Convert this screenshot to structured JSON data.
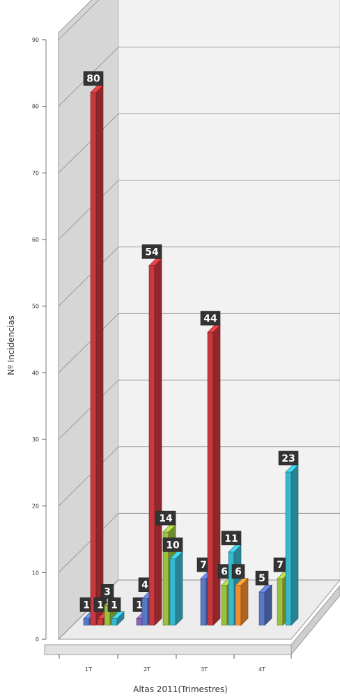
{
  "chart_data": {
    "type": "bar",
    "xlabel": "Altas 2011(Trimestres)",
    "ylabel": "Nº Incidencias",
    "ylim": [
      0,
      90
    ],
    "yticks": [
      "0",
      "10",
      "20",
      "30",
      "40",
      "50",
      "60",
      "70",
      "80",
      "90"
    ],
    "categories": [
      "1T",
      "2T",
      "3T",
      "4T"
    ],
    "grid": true,
    "legend": "none",
    "style": "3d-clustered-columns",
    "colors": {
      "blue": "#5a78c8",
      "red": "#c8383c",
      "purple": "#8a64b8",
      "green": "#9ac040",
      "teal": "#38b8cc",
      "orange": "#f08c30"
    },
    "bars": [
      {
        "category": "1T",
        "color": "blue",
        "value": 1,
        "label": "1"
      },
      {
        "category": "1T",
        "color": "red",
        "value": 80,
        "label": "80"
      },
      {
        "category": "1T",
        "color": "red",
        "value": 1,
        "label": "1"
      },
      {
        "category": "1T",
        "color": "green",
        "value": 3,
        "label": "3"
      },
      {
        "category": "1T",
        "color": "teal",
        "value": 1,
        "label": "1"
      },
      {
        "category": "2T",
        "color": "purple",
        "value": 1,
        "label": "1"
      },
      {
        "category": "2T",
        "color": "blue",
        "value": 4,
        "label": "4"
      },
      {
        "category": "2T",
        "color": "red",
        "value": 54,
        "label": "54"
      },
      {
        "category": "2T",
        "color": "green",
        "value": 14,
        "label": "14"
      },
      {
        "category": "2T",
        "color": "teal",
        "value": 10,
        "label": "10"
      },
      {
        "category": "3T",
        "color": "blue",
        "value": 7,
        "label": "7"
      },
      {
        "category": "3T",
        "color": "red",
        "value": 44,
        "label": "44"
      },
      {
        "category": "3T",
        "color": "green",
        "value": 6,
        "label": "6"
      },
      {
        "category": "3T",
        "color": "teal",
        "value": 11,
        "label": "11"
      },
      {
        "category": "3T",
        "color": "orange",
        "value": 6,
        "label": "6"
      },
      {
        "category": "4T",
        "color": "blue",
        "value": 5,
        "label": "5"
      },
      {
        "category": "4T",
        "color": "green",
        "value": 7,
        "label": "7"
      },
      {
        "category": "4T",
        "color": "teal",
        "value": 23,
        "label": "23"
      }
    ]
  }
}
